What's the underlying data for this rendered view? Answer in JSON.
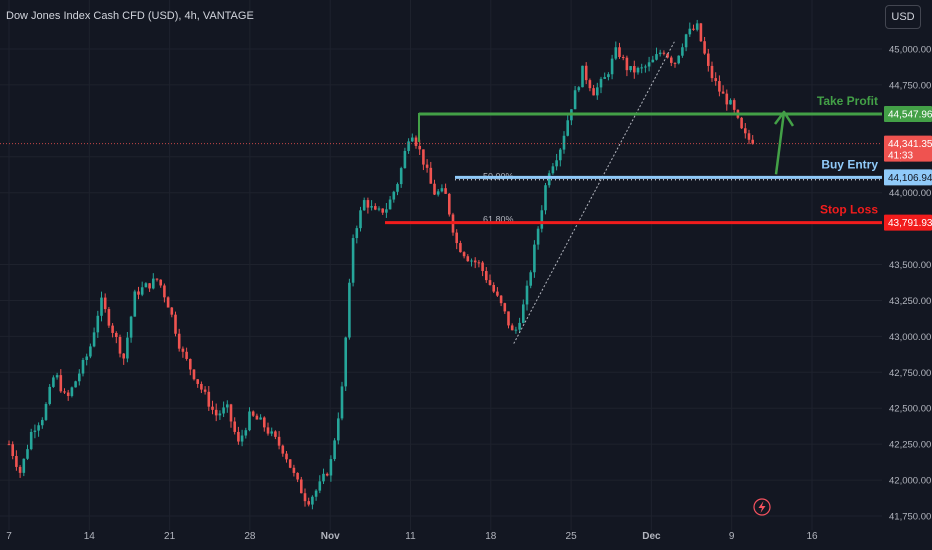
{
  "header": {
    "title": "Dow Jones Index Cash CFD (USD), 4h, VANTAGE",
    "currency": "USD"
  },
  "colors": {
    "background": "#131722",
    "up": "#26a69a",
    "down": "#ef5350",
    "take_profit": "#43a047",
    "buy_entry": "#90caf9",
    "stop_loss": "#f21c1c",
    "grid": "#1e222d"
  },
  "icons": [
    "lightning-icon"
  ],
  "chart_data": {
    "type": "candlestick",
    "y_axis": {
      "range": [
        41750,
        45350
      ],
      "ticks": [
        45000,
        44750,
        44250,
        44000,
        43500,
        43250,
        43000,
        42750,
        42500,
        42250,
        42000,
        41750
      ],
      "tick_labels": [
        "45,000.00",
        "44,750.00",
        "44,250.00",
        "44,000.00",
        "43,500.00",
        "43,250.00",
        "43,000.00",
        "42,750.00",
        "42,500.00",
        "42,250.00",
        "42,000.00",
        "41,750.00"
      ]
    },
    "x_axis": {
      "labels": [
        "7",
        "14",
        "21",
        "28",
        "Nov",
        "11",
        "18",
        "25",
        "Dec",
        "9",
        "16"
      ],
      "label_dates": [
        "Oct 7",
        "Oct 14",
        "Oct 21",
        "Oct 28",
        "Nov 4",
        "Nov 11",
        "Nov 18",
        "Nov 25",
        "Dec 2",
        "Dec 9",
        "Dec 16"
      ]
    },
    "price_path": [
      [
        "Oct 7",
        42250
      ],
      [
        "Oct 8",
        42050
      ],
      [
        "Oct 9",
        42350
      ],
      [
        "Oct 10",
        42450
      ],
      [
        "Oct 11",
        42750
      ],
      [
        "Oct 12",
        42550
      ],
      [
        "Oct 14",
        42900
      ],
      [
        "Oct 15",
        43250
      ],
      [
        "Oct 16",
        43050
      ],
      [
        "Oct 17",
        42850
      ],
      [
        "Oct 18",
        43300
      ],
      [
        "Oct 19",
        43350
      ],
      [
        "Oct 20",
        43400
      ],
      [
        "Oct 21",
        43200
      ],
      [
        "Oct 22",
        42900
      ],
      [
        "Oct 23",
        42750
      ],
      [
        "Oct 24",
        42600
      ],
      [
        "Oct 25",
        42450
      ],
      [
        "Oct 26",
        42500
      ],
      [
        "Oct 27",
        42250
      ],
      [
        "Oct 28",
        42450
      ],
      [
        "Oct 29",
        42400
      ],
      [
        "Oct 30",
        42300
      ],
      [
        "Oct 31",
        42200
      ],
      [
        "Nov 1",
        42000
      ],
      [
        "Nov 2",
        41850
      ],
      [
        "Nov 3",
        41950
      ],
      [
        "Nov 4",
        42100
      ],
      [
        "Nov 5",
        42600
      ],
      [
        "Nov 6",
        43700
      ],
      [
        "Nov 7",
        43950
      ],
      [
        "Nov 8",
        43850
      ],
      [
        "Nov 9",
        43900
      ],
      [
        "Nov 10",
        44100
      ],
      [
        "Nov 11",
        44450
      ],
      [
        "Nov 12",
        44250
      ],
      [
        "Nov 13",
        44000
      ],
      [
        "Nov 14",
        44000
      ],
      [
        "Nov 15",
        43650
      ],
      [
        "Nov 16",
        43550
      ],
      [
        "Nov 17",
        43500
      ],
      [
        "Nov 18",
        43350
      ],
      [
        "Nov 19",
        43200
      ],
      [
        "Nov 20",
        43000
      ],
      [
        "Nov 21",
        43250
      ],
      [
        "Nov 22",
        43700
      ],
      [
        "Nov 23",
        44150
      ],
      [
        "Nov 24",
        44300
      ],
      [
        "Nov 25",
        44600
      ],
      [
        "Nov 26",
        44850
      ],
      [
        "Nov 27",
        44700
      ],
      [
        "Nov 28",
        44800
      ],
      [
        "Nov 29",
        45000
      ],
      [
        "Nov 30",
        44850
      ],
      [
        "Dec 1",
        44850
      ],
      [
        "Dec 2",
        44900
      ],
      [
        "Dec 3",
        45000
      ],
      [
        "Dec 4",
        44900
      ],
      [
        "Dec 5",
        45100
      ],
      [
        "Dec 6",
        45150
      ],
      [
        "Dec 7",
        44850
      ],
      [
        "Dec 8",
        44700
      ],
      [
        "Dec 9",
        44600
      ],
      [
        "Dec 10",
        44400
      ],
      [
        "Dec 11",
        44341.35
      ]
    ],
    "levels": [
      {
        "name": "Take Profit",
        "value": 44547.96,
        "price_label": "44,547.96",
        "color": "#43a047"
      },
      {
        "name": "Buy Entry",
        "value": 44106.94,
        "price_label": "44,106.94",
        "color": "#90caf9"
      },
      {
        "name": "Stop Loss",
        "value": 43791.93,
        "price_label": "43,791.93",
        "color": "#f21c1c"
      }
    ],
    "fibonacci": [
      {
        "label": "50.00%",
        "value": 44090
      },
      {
        "label": "61.80%",
        "value": 43790
      }
    ],
    "current_price": {
      "value": 44341.35,
      "label": "44,341.35",
      "countdown": "41:33"
    },
    "trendline": {
      "from": [
        "Nov 20",
        42950
      ],
      "to": [
        "Dec 4",
        45050
      ]
    },
    "projection_arrow": {
      "from": [
        "Dec 13",
        44106.94
      ],
      "to": [
        "Dec 14",
        44547.96
      ]
    }
  }
}
